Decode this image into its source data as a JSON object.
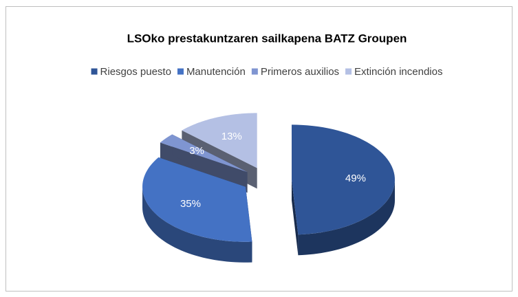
{
  "chart_data": {
    "type": "pie3d",
    "title": "LSOko prestakuntzaren sailkapena BATZ Groupen",
    "categories": [
      "Riesgos puesto",
      "Manutención",
      "Primeros auxilios",
      "Extinción incendios"
    ],
    "values": [
      49,
      35,
      3,
      13
    ],
    "value_labels": [
      "49%",
      "35%",
      "3%",
      "13%"
    ],
    "colors": [
      "#2F5597",
      "#4472C4",
      "#7F95D1",
      "#B4C0E4"
    ],
    "legend": "top"
  }
}
